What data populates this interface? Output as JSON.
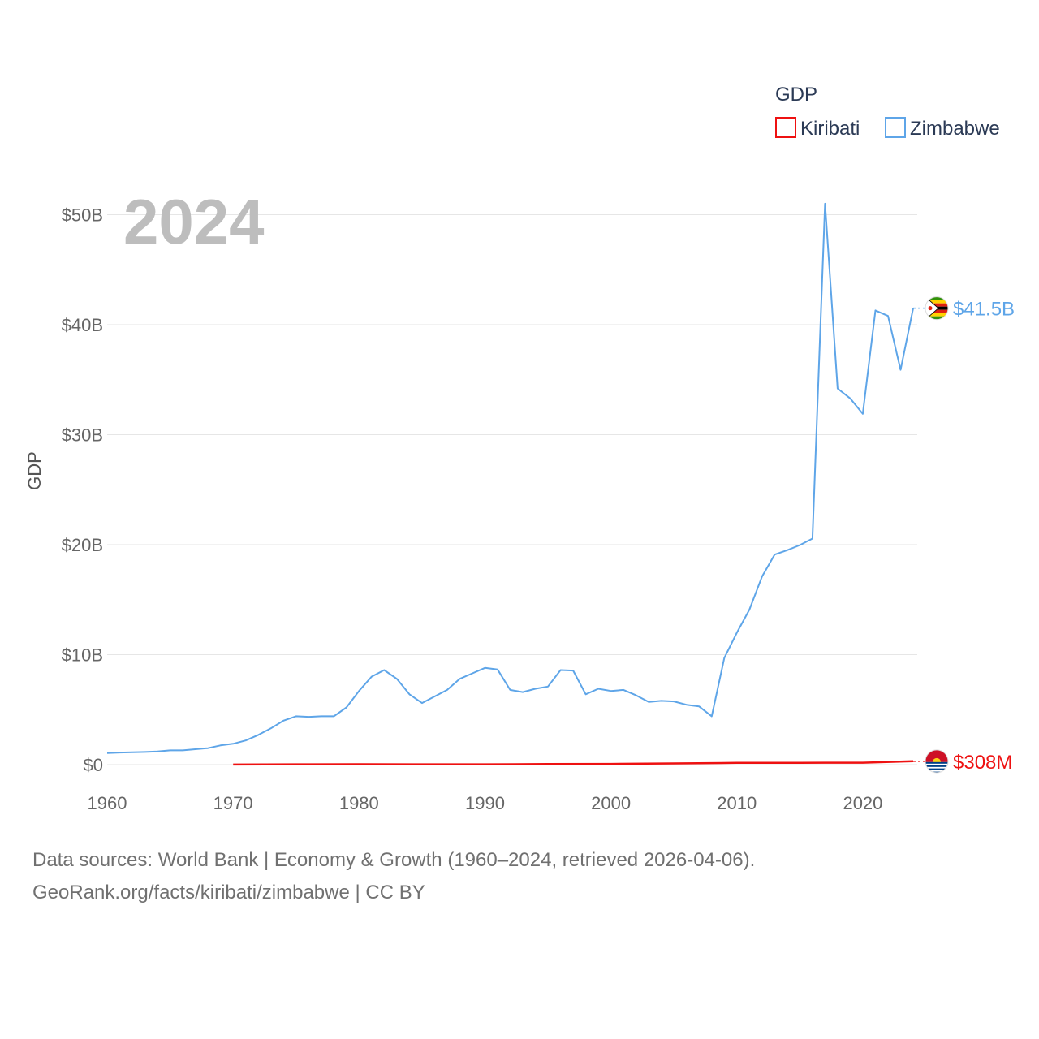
{
  "chart_data": {
    "type": "line",
    "ylabel": "GDP",
    "xlabel": "",
    "year_label": "2024",
    "legend": {
      "title": "GDP",
      "position": "top-right"
    },
    "xlim": [
      1960,
      2024
    ],
    "ylim": [
      0,
      52
    ],
    "y_unit": "billion USD",
    "x_ticks": [
      1960,
      1970,
      1980,
      1990,
      2000,
      2010,
      2020
    ],
    "x_tick_labels": [
      "1960",
      "1970",
      "1980",
      "1990",
      "2000",
      "2010",
      "2020"
    ],
    "y_ticks": [
      0,
      10,
      20,
      30,
      40,
      50
    ],
    "y_tick_labels": [
      "$0",
      "$10B",
      "$20B",
      "$30B",
      "$40B",
      "$50B"
    ],
    "grid": true,
    "series": [
      {
        "name": "Kiribati",
        "color": "#ee1111",
        "end_label": "$308M",
        "flag": "kiribati-flag",
        "x": [
          1970,
          1975,
          1980,
          1985,
          1990,
          1995,
          2000,
          2005,
          2010,
          2015,
          2020,
          2024
        ],
        "values": [
          0.01,
          0.03,
          0.04,
          0.03,
          0.03,
          0.05,
          0.07,
          0.11,
          0.16,
          0.17,
          0.18,
          0.308
        ]
      },
      {
        "name": "Zimbabwe",
        "color": "#5ea5e8",
        "end_label": "$41.5B",
        "flag": "zimbabwe-flag",
        "x": [
          1960,
          1961,
          1962,
          1963,
          1964,
          1965,
          1966,
          1967,
          1968,
          1969,
          1970,
          1971,
          1972,
          1973,
          1974,
          1975,
          1976,
          1977,
          1978,
          1979,
          1980,
          1981,
          1982,
          1983,
          1984,
          1985,
          1986,
          1987,
          1988,
          1989,
          1990,
          1991,
          1992,
          1993,
          1994,
          1995,
          1996,
          1997,
          1998,
          1999,
          2000,
          2001,
          2002,
          2003,
          2004,
          2005,
          2006,
          2007,
          2008,
          2009,
          2010,
          2011,
          2012,
          2013,
          2014,
          2015,
          2016,
          2017,
          2018,
          2019,
          2020,
          2021,
          2022,
          2023,
          2024
        ],
        "values": [
          1.05,
          1.1,
          1.12,
          1.15,
          1.2,
          1.3,
          1.3,
          1.4,
          1.5,
          1.75,
          1.9,
          2.2,
          2.7,
          3.3,
          4.0,
          4.4,
          4.35,
          4.4,
          4.4,
          5.2,
          6.7,
          8.0,
          8.6,
          7.8,
          6.4,
          5.6,
          6.2,
          6.8,
          7.8,
          8.3,
          8.8,
          8.65,
          6.8,
          6.6,
          6.9,
          7.1,
          8.6,
          8.55,
          6.4,
          6.9,
          6.7,
          6.8,
          6.3,
          5.7,
          5.8,
          5.75,
          5.45,
          5.3,
          4.4,
          9.7,
          12.0,
          14.1,
          17.1,
          19.1,
          19.5,
          19.96,
          20.55,
          51.0,
          34.2,
          33.3,
          31.9,
          41.3,
          40.8,
          35.9,
          41.5
        ]
      }
    ]
  },
  "footer": {
    "line1": "Data sources: World Bank | Economy & Growth (1960–2024, retrieved 2026-04-06).",
    "line2": "GeoRank.org/facts/kiribati/zimbabwe | CC BY"
  }
}
